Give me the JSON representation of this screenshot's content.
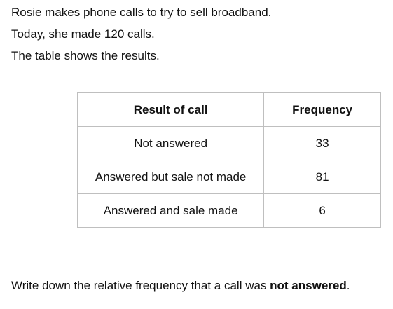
{
  "intro": {
    "line1": "Rosie makes phone calls to try to sell broadband.",
    "line2": "Today, she made 120 calls.",
    "line3": "The table shows the results."
  },
  "table": {
    "headers": [
      "Result of call",
      "Frequency"
    ],
    "rows": [
      {
        "result": "Not answered",
        "frequency": "33"
      },
      {
        "result": "Answered but sale not made",
        "frequency": "81"
      },
      {
        "result": "Answered and sale made",
        "frequency": "6"
      }
    ]
  },
  "question": {
    "prefix": "Write down the relative frequency that a call was ",
    "emphasis": "not answered",
    "suffix": "."
  }
}
